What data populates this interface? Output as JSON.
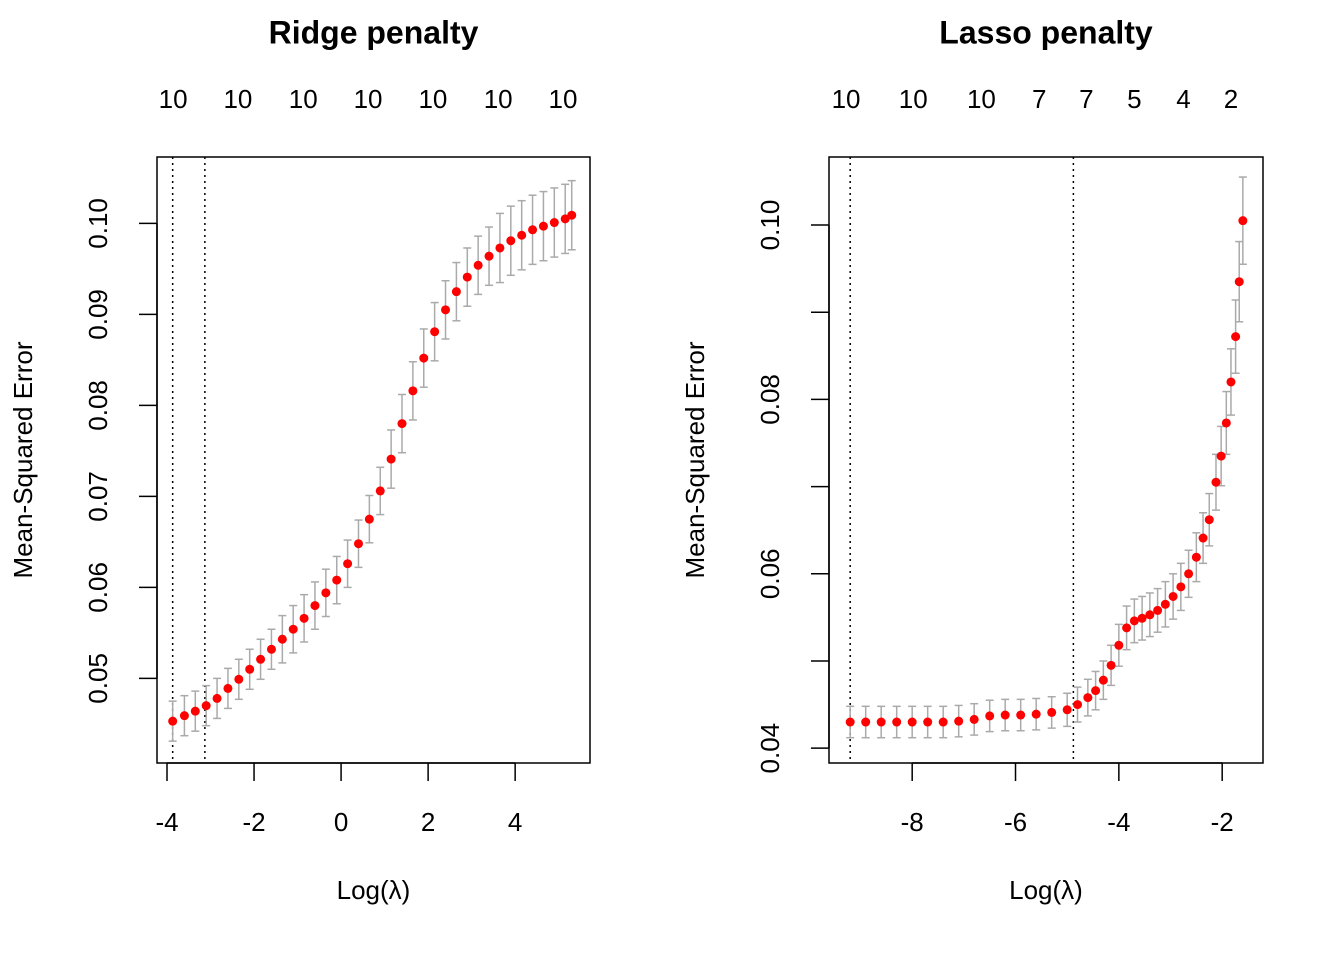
{
  "chart_data": [
    {
      "type": "scatter",
      "title": "Ridge penalty",
      "xlabel": "Log(λ)",
      "ylabel": "Mean-Squared Error",
      "color": "#ff0000",
      "error_color": "#aaaaaa",
      "x": [
        -3.87,
        -3.6,
        -3.35,
        -3.1,
        -2.85,
        -2.6,
        -2.35,
        -2.1,
        -1.85,
        -1.6,
        -1.35,
        -1.1,
        -0.85,
        -0.6,
        -0.35,
        -0.1,
        0.15,
        0.4,
        0.65,
        0.9,
        1.15,
        1.4,
        1.65,
        1.9,
        2.15,
        2.4,
        2.65,
        2.9,
        3.15,
        3.4,
        3.65,
        3.9,
        4.15,
        4.4,
        4.65,
        4.9,
        5.15,
        5.3
      ],
      "values": [
        0.0453,
        0.0459,
        0.0464,
        0.047,
        0.0478,
        0.0489,
        0.0499,
        0.051,
        0.0521,
        0.0532,
        0.0543,
        0.0554,
        0.0566,
        0.058,
        0.0594,
        0.0608,
        0.0626,
        0.0648,
        0.0675,
        0.0706,
        0.0741,
        0.078,
        0.0816,
        0.0852,
        0.0881,
        0.0905,
        0.0925,
        0.0941,
        0.0954,
        0.0964,
        0.0973,
        0.0981,
        0.0987,
        0.0993,
        0.0997,
        0.1001,
        0.1005,
        0.1009
      ],
      "errors": [
        0.0022,
        0.0022,
        0.0022,
        0.0022,
        0.0022,
        0.0022,
        0.0022,
        0.0022,
        0.0022,
        0.0022,
        0.0026,
        0.0026,
        0.0026,
        0.0026,
        0.0026,
        0.0026,
        0.0026,
        0.0026,
        0.0026,
        0.0026,
        0.0032,
        0.0032,
        0.0032,
        0.0032,
        0.0032,
        0.0032,
        0.0032,
        0.0032,
        0.0032,
        0.0032,
        0.0038,
        0.0038,
        0.0038,
        0.0038,
        0.0038,
        0.0038,
        0.0038,
        0.0038
      ],
      "vlines": [
        -3.87,
        -3.13
      ],
      "xlim": [
        -4.23,
        5.72
      ],
      "ylim": [
        0.0407,
        0.1073
      ],
      "xticks": [
        -4,
        -2,
        0,
        2,
        4
      ],
      "yticks": [
        0.05,
        0.06,
        0.07,
        0.08,
        0.09,
        {
          "value": 0.1,
          "label": "0.10"
        }
      ],
      "top_ticks": [
        {
          "value": -3.86,
          "label": "10"
        },
        {
          "value": -2.37,
          "label": "10"
        },
        {
          "value": -0.87,
          "label": "10"
        },
        {
          "value": 0.62,
          "label": "10"
        },
        {
          "value": 2.11,
          "label": "10"
        },
        {
          "value": 3.61,
          "label": "10"
        },
        {
          "value": 5.1,
          "label": "10"
        }
      ]
    },
    {
      "type": "scatter",
      "title": "Lasso penalty",
      "xlabel": "Log(λ)",
      "ylabel": "Mean-Squared Error",
      "color": "#ff0000",
      "error_color": "#aaaaaa",
      "x": [
        -9.2,
        -8.9,
        -8.6,
        -8.3,
        -8.0,
        -7.7,
        -7.4,
        -7.1,
        -6.8,
        -6.5,
        -6.2,
        -5.9,
        -5.6,
        -5.3,
        -5.0,
        -4.8,
        -4.6,
        -4.45,
        -4.3,
        -4.15,
        -4.0,
        -3.85,
        -3.7,
        -3.55,
        -3.4,
        -3.25,
        -3.1,
        -2.95,
        -2.8,
        -2.65,
        -2.5,
        -2.37,
        -2.25,
        -2.12,
        -2.02,
        -1.92,
        -1.83,
        -1.74,
        -1.67,
        -1.6
      ],
      "values": [
        0.043,
        0.043,
        0.043,
        0.043,
        0.043,
        0.043,
        0.043,
        0.0431,
        0.0433,
        0.0437,
        0.0438,
        0.0438,
        0.0439,
        0.0441,
        0.0444,
        0.045,
        0.0458,
        0.0466,
        0.0478,
        0.0495,
        0.0518,
        0.0538,
        0.0546,
        0.0549,
        0.0553,
        0.0558,
        0.0565,
        0.0574,
        0.0585,
        0.06,
        0.0619,
        0.0641,
        0.0662,
        0.0705,
        0.0735,
        0.0773,
        0.082,
        0.0872,
        0.0935,
        0.1005
      ],
      "errors": [
        0.0018,
        0.0018,
        0.0018,
        0.0018,
        0.0018,
        0.0018,
        0.0018,
        0.0018,
        0.0018,
        0.0018,
        0.0018,
        0.0018,
        0.0018,
        0.0018,
        0.0019,
        0.002,
        0.0021,
        0.0022,
        0.0022,
        0.0023,
        0.0024,
        0.0025,
        0.0025,
        0.0025,
        0.0025,
        0.0025,
        0.0026,
        0.0026,
        0.0027,
        0.0027,
        0.0028,
        0.0029,
        0.003,
        0.0032,
        0.0034,
        0.0036,
        0.0038,
        0.0042,
        0.0046,
        0.005
      ],
      "vlines": [
        -9.2,
        -4.88
      ],
      "xlim": [
        -9.61,
        -1.21
      ],
      "ylim": [
        0.0383,
        0.1078
      ],
      "xticks": [
        -8,
        -6,
        -4,
        -2
      ],
      "yticks": [
        0.04,
        0.06,
        0.08,
        {
          "value": 0.1,
          "label": "0.10"
        }
      ],
      "yminor_ticks": [
        0.05,
        0.07,
        0.09
      ],
      "top_ticks": [
        {
          "value": -9.28,
          "label": "10"
        },
        {
          "value": -7.98,
          "label": "10"
        },
        {
          "value": -6.66,
          "label": "10"
        },
        {
          "value": -5.54,
          "label": "7"
        },
        {
          "value": -4.63,
          "label": "7"
        },
        {
          "value": -3.7,
          "label": "5"
        },
        {
          "value": -2.75,
          "label": "4"
        },
        {
          "value": -1.83,
          "label": "2"
        }
      ]
    }
  ]
}
